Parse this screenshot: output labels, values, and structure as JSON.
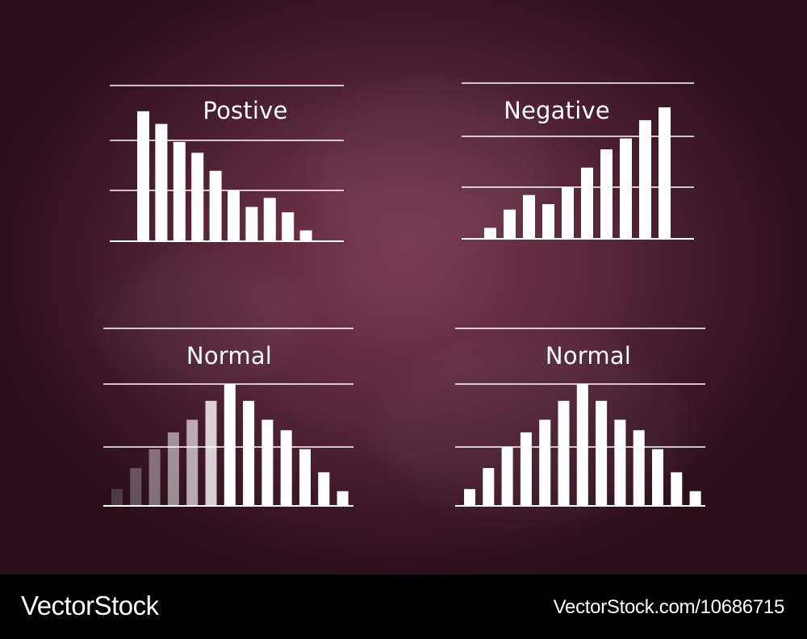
{
  "colors": {
    "background": "#5e2a3f",
    "bars": "#ffffff",
    "lines": "#ffffff",
    "footer_bg": "#000000"
  },
  "chart_data": [
    {
      "type": "bar",
      "title": "Postive",
      "values": [
        7.2,
        6.5,
        5.5,
        4.9,
        3.9,
        2.8,
        1.9,
        2.4,
        1.6,
        0.6
      ],
      "ylim": [
        0,
        8
      ],
      "grid": true
    },
    {
      "type": "bar",
      "title": "Negative",
      "values": [
        0.6,
        1.6,
        2.4,
        1.9,
        2.8,
        3.9,
        4.9,
        5.5,
        6.5,
        7.2
      ],
      "ylim": [
        0,
        8
      ],
      "grid": true
    },
    {
      "type": "bar",
      "title": "Normal",
      "values": [
        0.8,
        1.8,
        2.7,
        3.5,
        4.1,
        5.0,
        5.8,
        5.0,
        4.1,
        3.6,
        2.7,
        1.6,
        0.7
      ],
      "bar_opacity": [
        0.18,
        0.28,
        0.4,
        0.52,
        0.64,
        0.8,
        1,
        1,
        1,
        1,
        1,
        1,
        1
      ],
      "ylim": [
        0,
        5.8
      ],
      "grid": true
    },
    {
      "type": "bar",
      "title": "Normal",
      "values": [
        0.8,
        1.8,
        2.8,
        3.5,
        4.1,
        5.0,
        5.8,
        5.0,
        4.1,
        3.6,
        2.7,
        1.6,
        0.7
      ],
      "ylim": [
        0,
        5.8
      ],
      "grid": true
    }
  ],
  "footer": {
    "brand": "VectorStock",
    "reference": "VectorStock.com/10686715"
  }
}
